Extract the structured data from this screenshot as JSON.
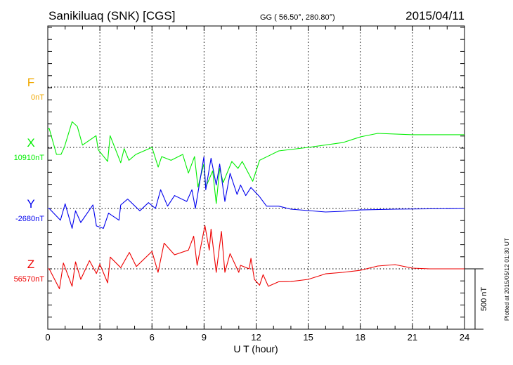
{
  "header": {
    "station": "Sanikiluaq (SNK)  [CGS]",
    "coords": "GG ( 56.50°, 280.80°)",
    "date": "2015/04/11"
  },
  "plotted_at": "Plotted at 2015/05/12 01:30 UT",
  "scale_label": "500 nT",
  "colors": {
    "F": "#f0a800",
    "X": "#00ee00",
    "Y": "#0000ee",
    "Z": "#ee0000"
  },
  "chart_data": {
    "type": "line",
    "xlabel": "U T (hour)",
    "xlim": [
      0,
      24
    ],
    "xticks": [
      "0",
      "3",
      "6",
      "9",
      "12",
      "15",
      "18",
      "21",
      "24"
    ],
    "scale_nT": 500,
    "grid": true,
    "series": [
      {
        "name": "F",
        "baseline_label": "0nT",
        "points": []
      },
      {
        "name": "X",
        "baseline_label": "10910nT",
        "points": [
          [
            0,
            150
          ],
          [
            0.08,
            157
          ],
          [
            0.5,
            -58
          ],
          [
            0.76,
            -58
          ],
          [
            0.95,
            0
          ],
          [
            1.4,
            213
          ],
          [
            1.7,
            174
          ],
          [
            2.0,
            19
          ],
          [
            2.78,
            97
          ],
          [
            2.9,
            -19
          ],
          [
            3.45,
            -116
          ],
          [
            3.59,
            97
          ],
          [
            4.2,
            -127
          ],
          [
            4.4,
            -10
          ],
          [
            4.67,
            -107
          ],
          [
            5.07,
            -58
          ],
          [
            6.0,
            0
          ],
          [
            6.36,
            -163
          ],
          [
            6.56,
            -76
          ],
          [
            7.1,
            -107
          ],
          [
            7.77,
            -58
          ],
          [
            8.1,
            -213
          ],
          [
            8.45,
            -76
          ],
          [
            8.65,
            -329
          ],
          [
            8.99,
            -136
          ],
          [
            9.1,
            -329
          ],
          [
            9.5,
            -194
          ],
          [
            9.7,
            -465
          ],
          [
            9.9,
            -174
          ],
          [
            10.1,
            -291
          ],
          [
            10.6,
            -116
          ],
          [
            10.95,
            -174
          ],
          [
            11.2,
            -116
          ],
          [
            11.8,
            -281
          ],
          [
            12.2,
            -107
          ],
          [
            13.3,
            -29
          ],
          [
            15,
            0
          ],
          [
            17,
            40
          ],
          [
            18,
            87
          ],
          [
            19,
            116
          ],
          [
            21,
            105
          ],
          [
            24,
            105
          ]
        ]
      },
      {
        "name": "Y",
        "baseline_label": "-2680nT",
        "points": [
          [
            0,
            0
          ],
          [
            0.08,
            0
          ],
          [
            0.73,
            -97
          ],
          [
            1.0,
            39
          ],
          [
            1.4,
            -165
          ],
          [
            1.6,
            -19
          ],
          [
            1.9,
            -116
          ],
          [
            2.6,
            29
          ],
          [
            2.8,
            -145
          ],
          [
            3.2,
            -165
          ],
          [
            3.5,
            -39
          ],
          [
            4.1,
            -97
          ],
          [
            4.2,
            29
          ],
          [
            4.6,
            78
          ],
          [
            5.3,
            -19
          ],
          [
            5.8,
            48
          ],
          [
            6.2,
            0
          ],
          [
            6.5,
            155
          ],
          [
            6.9,
            19
          ],
          [
            7.3,
            107
          ],
          [
            8.0,
            58
          ],
          [
            8.3,
            155
          ],
          [
            8.5,
            0
          ],
          [
            8.99,
            426
          ],
          [
            9.1,
            155
          ],
          [
            9.4,
            416
          ],
          [
            9.7,
            194
          ],
          [
            9.9,
            368
          ],
          [
            10.2,
            58
          ],
          [
            10.5,
            291
          ],
          [
            10.9,
            116
          ],
          [
            11.1,
            194
          ],
          [
            11.4,
            107
          ],
          [
            11.7,
            174
          ],
          [
            12.2,
            97
          ],
          [
            12.6,
            19
          ],
          [
            13.3,
            19
          ],
          [
            14,
            -6
          ],
          [
            16,
            -29
          ],
          [
            17,
            -23
          ],
          [
            18,
            -12
          ],
          [
            20,
            -6
          ],
          [
            24,
            0
          ]
        ]
      },
      {
        "name": "Z",
        "baseline_label": "56570nT",
        "points": [
          [
            0,
            0
          ],
          [
            0.08,
            0
          ],
          [
            0.67,
            -165
          ],
          [
            0.9,
            48
          ],
          [
            1.4,
            -145
          ],
          [
            1.6,
            58
          ],
          [
            1.9,
            -87
          ],
          [
            2.4,
            68
          ],
          [
            2.8,
            -39
          ],
          [
            3.0,
            39
          ],
          [
            3.45,
            -116
          ],
          [
            3.6,
            97
          ],
          [
            4.2,
            10
          ],
          [
            4.7,
            136
          ],
          [
            5.1,
            19
          ],
          [
            6.0,
            145
          ],
          [
            6.35,
            -29
          ],
          [
            6.7,
            213
          ],
          [
            7.3,
            116
          ],
          [
            8.1,
            155
          ],
          [
            8.4,
            271
          ],
          [
            8.6,
            29
          ],
          [
            9.05,
            358
          ],
          [
            9.3,
            155
          ],
          [
            9.4,
            329
          ],
          [
            9.7,
            -29
          ],
          [
            10.0,
            310
          ],
          [
            10.2,
            -29
          ],
          [
            10.5,
            126
          ],
          [
            11.0,
            -29
          ],
          [
            11.1,
            29
          ],
          [
            11.6,
            0
          ],
          [
            11.7,
            87
          ],
          [
            11.9,
            -87
          ],
          [
            12.2,
            -136
          ],
          [
            12.4,
            -48
          ],
          [
            12.7,
            -145
          ],
          [
            13.3,
            -107
          ],
          [
            14,
            -105
          ],
          [
            15,
            -87
          ],
          [
            16,
            -41
          ],
          [
            17,
            -29
          ],
          [
            18,
            -12
          ],
          [
            19,
            23
          ],
          [
            20,
            35
          ],
          [
            21,
            6
          ],
          [
            22,
            0
          ],
          [
            24,
            0
          ]
        ]
      }
    ]
  }
}
